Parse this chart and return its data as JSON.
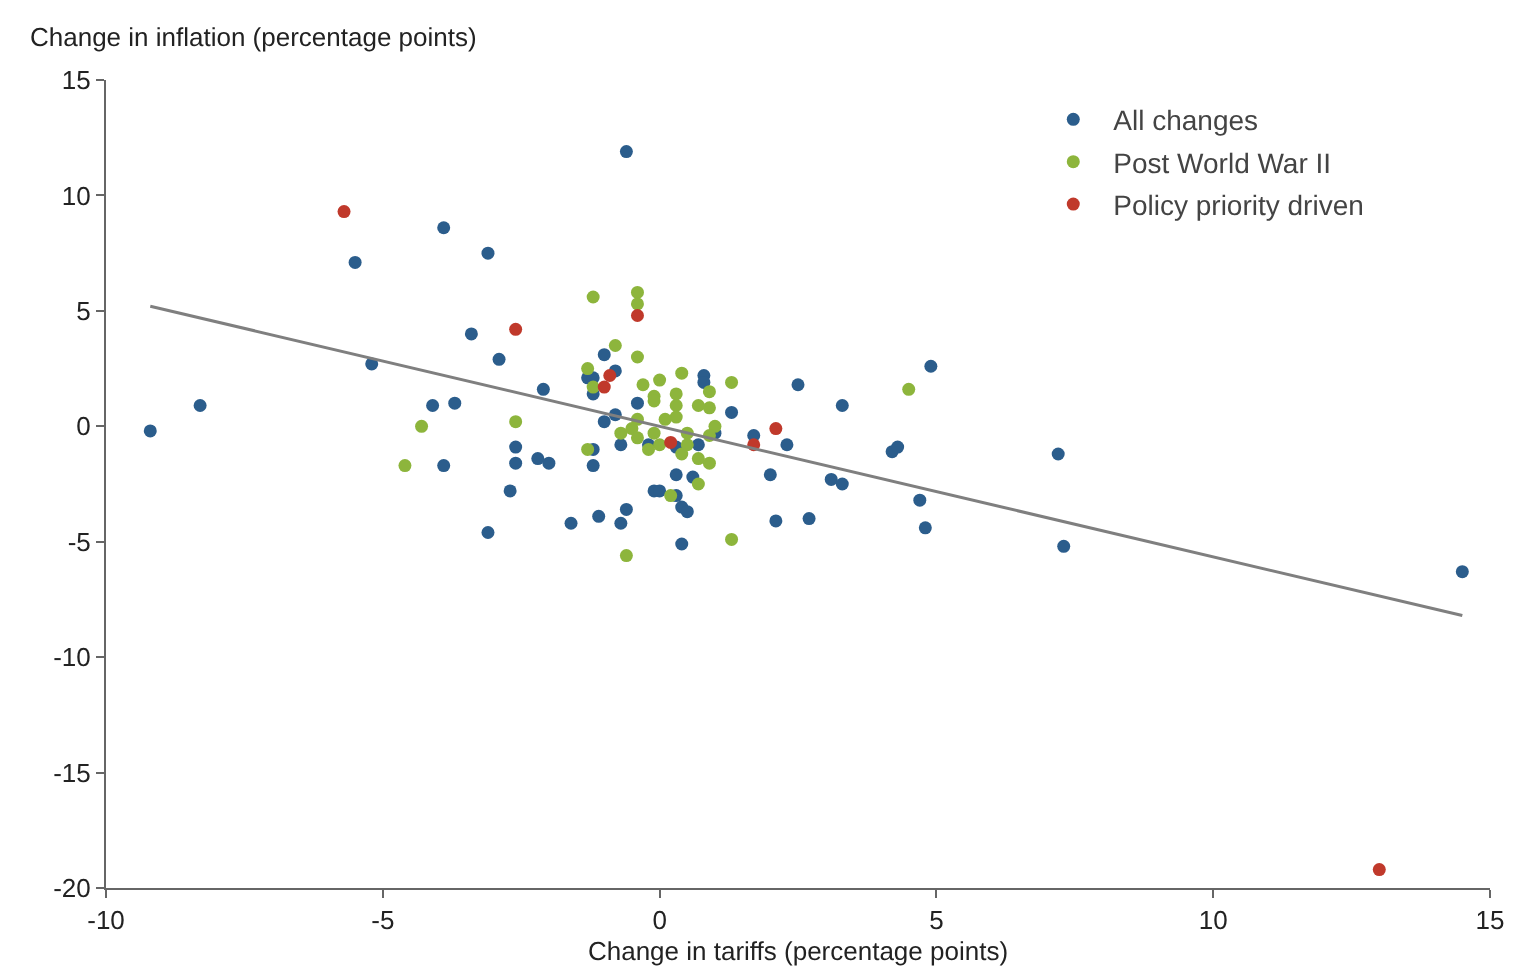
{
  "chart_data": {
    "type": "scatter",
    "xlabel": "Change in tariffs (percentage points)",
    "ylabel": "Change in inflation (percentage points)",
    "xlim": [
      -10,
      15
    ],
    "ylim": [
      -20,
      15
    ],
    "xticks": [
      -10,
      -5,
      0,
      5,
      10,
      15
    ],
    "yticks": [
      -20,
      -15,
      -10,
      -5,
      0,
      5,
      10,
      15
    ],
    "grid": false,
    "legend": "top right",
    "marker": "circle",
    "series": [
      {
        "name": "All changes",
        "color": "#2b5d8c",
        "x": [
          -9.2,
          -8.3,
          -5.5,
          -5.2,
          -3.9,
          -3.1,
          -3.4,
          -2.9,
          -4.1,
          -3.7,
          -3.9,
          -2.6,
          -2.6,
          -2.2,
          -2.0,
          -2.7,
          -3.1,
          -2.1,
          -0.6,
          -1.0,
          -0.8,
          -1.3,
          -1.2,
          -1.2,
          -0.8,
          -1.0,
          -0.4,
          -0.7,
          -1.2,
          -1.2,
          0.8,
          0.8,
          1.3,
          1.0,
          0.7,
          0.3,
          0.6,
          -0.1,
          0.0,
          0.3,
          0.4,
          0.5,
          -0.6,
          -1.1,
          -0.7,
          -1.6,
          0.4,
          2.1,
          2.7,
          2.0,
          1.7,
          2.3,
          2.5,
          3.3,
          3.1,
          3.3,
          4.2,
          4.3,
          4.9,
          4.7,
          4.8,
          -0.2,
          0.3,
          7.2,
          7.3,
          14.5
        ],
        "values": [
          -0.2,
          0.9,
          7.1,
          2.7,
          8.6,
          7.5,
          4.0,
          2.9,
          0.9,
          1.0,
          -1.7,
          -0.9,
          -1.6,
          -1.4,
          -1.6,
          -2.8,
          -4.6,
          1.6,
          11.9,
          3.1,
          2.4,
          2.1,
          2.1,
          1.4,
          0.5,
          0.2,
          1.0,
          -0.8,
          -1.0,
          -1.7,
          2.2,
          1.9,
          0.6,
          -0.3,
          -0.8,
          -2.1,
          -2.2,
          -2.8,
          -2.8,
          -3.0,
          -3.5,
          -3.7,
          -3.6,
          -3.9,
          -4.2,
          -4.2,
          -5.1,
          -4.1,
          -4.0,
          -2.1,
          -0.4,
          -0.8,
          1.8,
          0.9,
          -2.3,
          -2.5,
          -1.1,
          -0.9,
          2.6,
          -3.2,
          -4.4,
          -0.8,
          -0.9,
          -1.2,
          -5.2,
          -6.3
        ]
      },
      {
        "name": "Post World War II",
        "color": "#8db53c",
        "x": [
          -4.3,
          -4.6,
          -2.6,
          -1.2,
          -0.4,
          -0.4,
          -0.8,
          -0.4,
          -1.3,
          -1.2,
          -0.3,
          0.0,
          0.4,
          1.3,
          -0.1,
          -0.1,
          0.3,
          0.9,
          0.7,
          0.9,
          0.3,
          0.3,
          0.1,
          -0.4,
          1.0,
          0.9,
          -0.7,
          -0.5,
          -0.4,
          -0.1,
          0.5,
          0.0,
          -0.2,
          0.4,
          0.5,
          -1.3,
          0.7,
          0.9,
          0.7,
          0.2,
          1.3,
          -0.6,
          4.5
        ],
        "values": [
          0.0,
          -1.7,
          0.2,
          5.6,
          5.8,
          5.3,
          3.5,
          3.0,
          2.5,
          1.7,
          1.8,
          2.0,
          2.3,
          1.9,
          1.3,
          1.1,
          1.4,
          1.5,
          0.9,
          0.8,
          0.9,
          0.4,
          0.3,
          0.3,
          0.0,
          -0.4,
          -0.3,
          -0.1,
          -0.5,
          -0.3,
          -0.3,
          -0.8,
          -1.0,
          -1.2,
          -0.8,
          -1.0,
          -1.4,
          -1.6,
          -2.5,
          -3.0,
          -4.9,
          -5.6,
          1.6
        ]
      },
      {
        "name": "Policy priority driven",
        "color": "#c0392b",
        "x": [
          -5.7,
          -2.6,
          -0.4,
          -0.9,
          -1.0,
          0.2,
          1.7,
          2.1,
          13.0
        ],
        "values": [
          9.3,
          4.2,
          4.8,
          2.2,
          1.7,
          -0.7,
          -0.8,
          -0.1,
          -19.2
        ]
      },
      {
        "type": "line",
        "marker": "none",
        "color": "#7f7f7f",
        "x": [
          -9.2,
          14.5
        ],
        "values": [
          5.2,
          -8.2
        ]
      }
    ]
  }
}
